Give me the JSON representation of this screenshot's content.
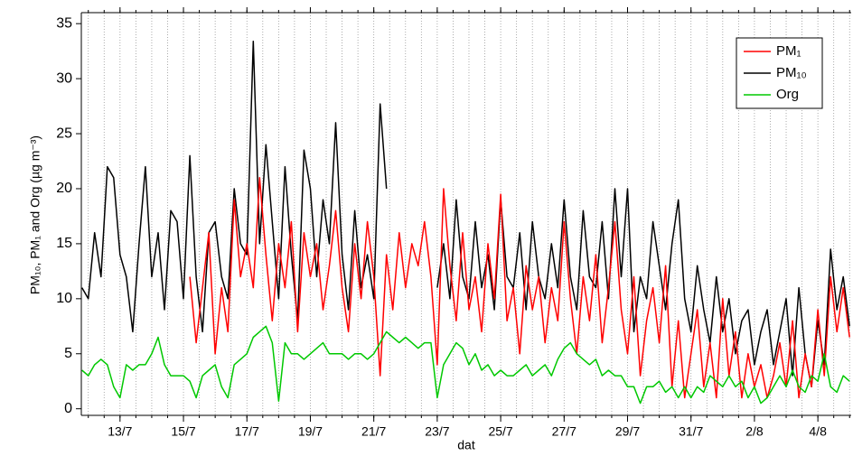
{
  "chart_data": {
    "type": "line",
    "y_label": "PM₁₀, PM₁ and Org (µg m⁻³)",
    "x_label": "dat",
    "xlim": [
      11.78,
      36.05
    ],
    "ylim": [
      -0.6,
      36
    ],
    "xticks": [
      {
        "value": 13,
        "label": "13/7"
      },
      {
        "value": 15,
        "label": "15/7"
      },
      {
        "value": 17,
        "label": "17/7"
      },
      {
        "value": 19,
        "label": "19/7"
      },
      {
        "value": 21,
        "label": "21/7"
      },
      {
        "value": 23,
        "label": "23/7"
      },
      {
        "value": 25,
        "label": "25/7"
      },
      {
        "value": 27,
        "label": "27/7"
      },
      {
        "value": 29,
        "label": "29/7"
      },
      {
        "value": 31,
        "label": "31/7"
      },
      {
        "value": 33,
        "label": "2/8"
      },
      {
        "value": 35,
        "label": "4/8"
      }
    ],
    "yticks": [
      0,
      5,
      10,
      15,
      20,
      25,
      30,
      35
    ],
    "minor_grid_step": 0.5,
    "legend": "upper right",
    "x": [
      11.8,
      12.0,
      12.2,
      12.4,
      12.6,
      12.8,
      13.0,
      13.2,
      13.4,
      13.6,
      13.8,
      14.0,
      14.2,
      14.4,
      14.6,
      14.8,
      15.0,
      15.2,
      15.4,
      15.6,
      15.8,
      16.0,
      16.2,
      16.4,
      16.6,
      16.8,
      17.0,
      17.2,
      17.4,
      17.6,
      17.8,
      18.0,
      18.2,
      18.4,
      18.6,
      18.8,
      19.0,
      19.2,
      19.4,
      19.6,
      19.8,
      20.0,
      20.2,
      20.4,
      20.6,
      20.8,
      21.0,
      21.2,
      21.4,
      21.6,
      21.8,
      22.0,
      22.2,
      22.4,
      22.6,
      22.8,
      23.0,
      23.2,
      23.4,
      23.6,
      23.8,
      24.0,
      24.2,
      24.4,
      24.6,
      24.8,
      25.0,
      25.2,
      25.4,
      25.6,
      25.8,
      26.0,
      26.2,
      26.4,
      26.6,
      26.8,
      27.0,
      27.2,
      27.4,
      27.6,
      27.8,
      28.0,
      28.2,
      28.4,
      28.6,
      28.8,
      29.0,
      29.2,
      29.4,
      29.6,
      29.8,
      30.0,
      30.2,
      30.4,
      30.6,
      30.8,
      31.0,
      31.2,
      31.4,
      31.6,
      31.8,
      32.0,
      32.2,
      32.4,
      32.6,
      32.8,
      33.0,
      33.2,
      33.4,
      33.6,
      33.8,
      34.0,
      34.2,
      34.4,
      34.6,
      34.8,
      35.0,
      35.2,
      35.4,
      35.6,
      35.8,
      36.0
    ],
    "series": [
      {
        "name": "PM₁",
        "color": "#ff0000",
        "values": [
          null,
          null,
          null,
          null,
          null,
          null,
          null,
          null,
          null,
          null,
          null,
          null,
          null,
          null,
          null,
          null,
          null,
          12,
          6,
          11,
          16,
          5,
          11,
          7,
          19,
          12,
          15,
          11,
          21,
          14,
          8,
          15,
          11,
          17,
          7,
          16,
          12,
          15,
          9,
          13,
          18,
          11,
          7,
          15,
          10,
          17,
          12,
          3,
          14,
          9,
          16,
          11,
          15,
          13,
          17,
          12,
          4,
          20,
          13,
          8,
          16,
          9,
          12,
          7,
          15,
          10,
          19.5,
          8,
          11,
          5,
          13,
          9,
          12,
          6,
          11,
          8,
          17,
          10,
          5,
          12,
          8,
          14,
          6,
          11,
          17,
          9,
          5,
          12,
          3,
          8,
          11,
          6,
          13,
          2,
          8,
          1,
          5,
          9,
          2,
          6,
          1,
          10,
          3,
          7,
          1,
          5,
          2,
          4,
          1,
          3,
          6,
          2,
          8,
          1,
          5,
          2,
          9,
          3,
          12,
          7,
          11,
          6.5
        ]
      },
      {
        "name": "PM₁₀",
        "color": "#000000",
        "values": [
          11,
          10,
          16,
          12,
          22,
          21,
          14,
          12,
          7,
          15,
          22,
          12,
          16,
          9,
          18,
          17,
          10,
          23,
          12,
          7,
          16,
          17,
          12,
          10,
          20,
          15,
          14,
          33.4,
          15,
          24,
          17,
          10,
          22,
          14,
          8,
          23.5,
          20,
          12,
          19,
          15,
          26,
          14,
          9,
          18,
          11,
          14,
          10,
          27.7,
          20,
          null,
          null,
          null,
          null,
          null,
          null,
          null,
          11,
          15,
          10,
          19,
          12,
          10,
          17,
          11,
          14,
          9,
          19,
          12,
          11,
          16,
          9,
          17,
          12,
          10,
          15,
          11,
          19,
          12,
          9,
          18,
          12,
          11,
          17,
          10,
          20,
          12,
          20,
          7,
          12,
          10,
          17,
          13,
          9,
          15,
          19,
          10,
          7,
          13,
          9,
          6,
          12,
          7,
          10,
          5,
          8,
          9,
          4,
          7,
          9,
          4,
          7,
          10,
          3,
          11,
          5,
          2,
          8,
          4,
          14.5,
          9,
          12,
          7.5
        ]
      },
      {
        "name": "Org",
        "color": "#00c800",
        "values": [
          3.5,
          3,
          4,
          4.5,
          4,
          2,
          1,
          4,
          3.5,
          4,
          4,
          5,
          6.5,
          4,
          3,
          3,
          3,
          2.5,
          1,
          3,
          3.5,
          4,
          2,
          1,
          4,
          4.5,
          5,
          6.5,
          7,
          7.5,
          6,
          0.7,
          6,
          5,
          5,
          4.5,
          5,
          5.5,
          6,
          5,
          5,
          5,
          4.5,
          5,
          5,
          4.5,
          5,
          6,
          7,
          6.5,
          6,
          6.5,
          6,
          5.5,
          6,
          6,
          1,
          4,
          5,
          6,
          5.5,
          4,
          5,
          3.5,
          4,
          3,
          3.5,
          3,
          3,
          3.5,
          4,
          3,
          3.5,
          4,
          3,
          4.5,
          5.5,
          6,
          5,
          4.5,
          4,
          4.5,
          3,
          3.5,
          3,
          3,
          2,
          2,
          0.5,
          2,
          2,
          2.5,
          1.5,
          2,
          1,
          2,
          1,
          2,
          1.5,
          3,
          2.5,
          2,
          3,
          2,
          2.5,
          1,
          2,
          0.5,
          1,
          2,
          3,
          2,
          3.5,
          2,
          1.5,
          3,
          2.5,
          5,
          2,
          1.5,
          3,
          2.5
        ]
      }
    ]
  }
}
